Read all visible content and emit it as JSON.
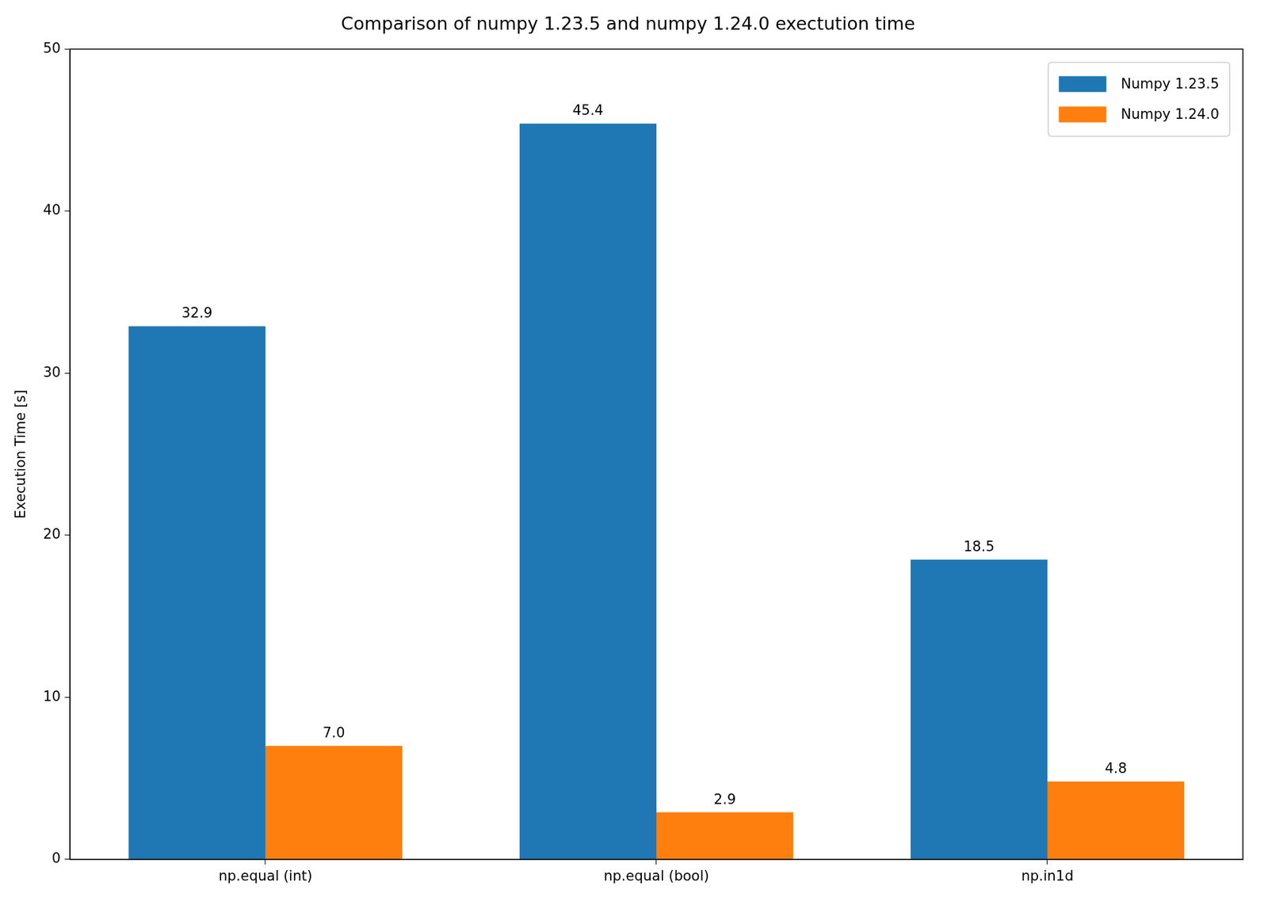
{
  "chart_data": {
    "type": "bar",
    "title": "Comparison of numpy 1.23.5 and numpy 1.24.0 exectution time",
    "y_label": "Execution Time [s]",
    "categories": [
      "np.equal (int)",
      "np.equal (bool)",
      "np.in1d"
    ],
    "series": [
      {
        "name": "Numpy 1.23.5",
        "color": "#1f77b4",
        "values": [
          32.9,
          45.4,
          18.5
        ],
        "value_labels": [
          "32.9",
          "45.4",
          "18.5"
        ]
      },
      {
        "name": "Numpy 1.24.0",
        "color": "#ff7f0e",
        "values": [
          7.0,
          2.9,
          4.8
        ],
        "value_labels": [
          "7.0",
          "2.9",
          "4.8"
        ]
      }
    ],
    "ylim": [
      0,
      50
    ],
    "yticks": [
      0,
      10,
      20,
      30,
      40,
      50
    ],
    "grid": false,
    "legend": "upper right",
    "data_labels": true
  }
}
